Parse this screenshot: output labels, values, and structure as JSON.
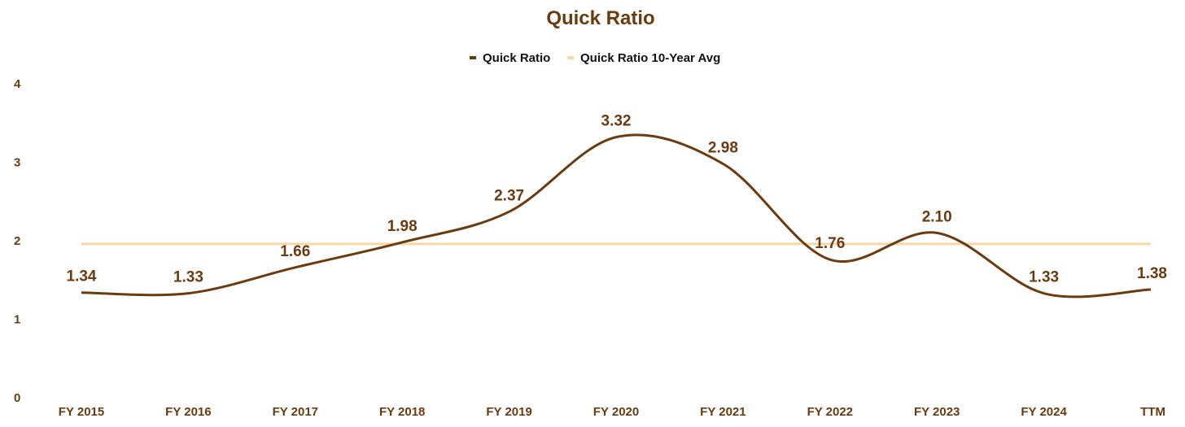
{
  "chart_data": {
    "type": "line",
    "title": "Quick Ratio",
    "categories": [
      "FY 2015",
      "FY 2016",
      "FY 2017",
      "FY 2018",
      "FY 2019",
      "FY 2020",
      "FY 2021",
      "FY 2022",
      "FY 2023",
      "FY 2024",
      "TTM"
    ],
    "series": [
      {
        "name": "Quick Ratio",
        "values": [
          1.34,
          1.33,
          1.66,
          1.98,
          2.37,
          3.32,
          2.98,
          1.76,
          2.1,
          1.33,
          1.38
        ],
        "labels": [
          "1.34",
          "1.33",
          "1.66",
          "1.98",
          "2.37",
          "3.32",
          "2.98",
          "1.76",
          "2.10",
          "1.33",
          "1.38"
        ],
        "color": "#6b3a0f"
      },
      {
        "name": "Quick Ratio 10-Year Avg",
        "value": 1.96,
        "color": "#f7d7aa"
      }
    ],
    "yticks": [
      "0",
      "1",
      "2",
      "3",
      "4"
    ],
    "ylim": [
      0,
      4
    ],
    "grid": false,
    "legend": "top-center",
    "text_color": "#6b3a0f"
  }
}
